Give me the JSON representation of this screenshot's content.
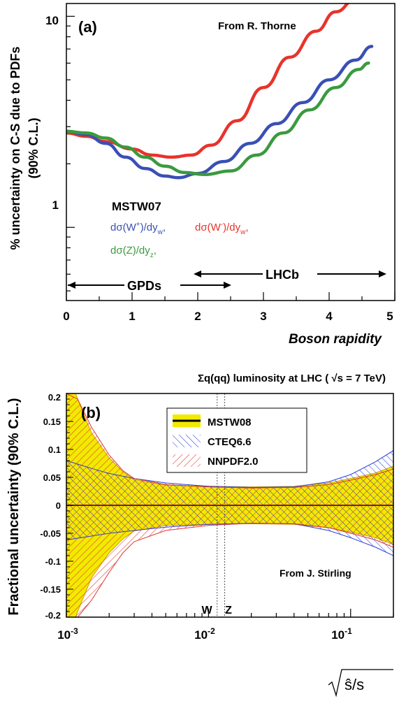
{
  "chart_data": [
    {
      "panel_label": "(a)",
      "type": "line",
      "credit": "From R. Thorne",
      "xlabel": "Boson rapidity",
      "ylabel_line1": "% uncertainty on C-S due to PDFs",
      "ylabel_line2": "(90% C.L.)",
      "xlim": [
        0,
        5
      ],
      "ylim": [
        0.45,
        11.5
      ],
      "yscale": "log",
      "x_ticks": [
        "0",
        "1",
        "2",
        "3",
        "4",
        "5"
      ],
      "y_ticks": [
        "1",
        "10"
      ],
      "legend_title": "MSTW07",
      "legend_entries": [
        "dσ(W+)/dyw,",
        "dσ(W-)/dyw,",
        "dσ(Z)/dyZ,"
      ],
      "colors": {
        "wplus": "#3a4fb5",
        "wminus": "#e8332b",
        "z": "#3a9a3e"
      },
      "series": [
        {
          "name": "dσ(W-)/dyW",
          "color": "#e8332b",
          "x": [
            0,
            0.3,
            0.6,
            1.0,
            1.3,
            1.6,
            1.9,
            2.2,
            2.6,
            3.0,
            3.4,
            3.8,
            4.1,
            4.4
          ],
          "y": [
            2.8,
            2.7,
            2.55,
            2.35,
            2.2,
            2.15,
            2.2,
            2.45,
            3.2,
            4.6,
            6.4,
            8.5,
            10.5,
            12.0
          ]
        },
        {
          "name": "dσ(W+)/dyW",
          "color": "#3a4fb5",
          "x": [
            0,
            0.3,
            0.6,
            0.9,
            1.2,
            1.5,
            1.7,
            2.0,
            2.4,
            2.8,
            3.2,
            3.6,
            4.0,
            4.4,
            4.65
          ],
          "y": [
            2.85,
            2.75,
            2.5,
            2.15,
            1.9,
            1.75,
            1.72,
            1.8,
            2.05,
            2.5,
            3.1,
            3.9,
            5.0,
            6.2,
            7.2
          ]
        },
        {
          "name": "dσ(Z)/dyZ",
          "color": "#3a9a3e",
          "x": [
            0,
            0.3,
            0.6,
            0.9,
            1.2,
            1.5,
            1.8,
            2.1,
            2.5,
            2.9,
            3.3,
            3.7,
            4.1,
            4.45,
            4.6
          ],
          "y": [
            2.85,
            2.8,
            2.65,
            2.4,
            2.15,
            1.95,
            1.82,
            1.78,
            1.85,
            2.2,
            2.8,
            3.6,
            4.6,
            5.6,
            6.0
          ]
        }
      ],
      "annotations": {
        "gpds": {
          "text": "GPDs",
          "x_from": 0,
          "x_to": 2.5
        },
        "lhcb": {
          "text": "LHCb",
          "x_from": 2.0,
          "x_to": 5.0
        }
      }
    },
    {
      "panel_label": "(b)",
      "type": "area",
      "title": "Σq(qq) luminosity at LHC ( √s = 7 TeV)",
      "ylabel": "Fractional uncertainty (90% C.L.)",
      "xlabel": "√(ŝ/s)",
      "credit": "From J. Stirling",
      "xscale": "log",
      "xlim": [
        0.001,
        0.2
      ],
      "ylim": [
        -0.2,
        0.2
      ],
      "x_ticks": [
        {
          "base": "10",
          "exp": "-3"
        },
        {
          "base": "10",
          "exp": "-2"
        },
        {
          "base": "10",
          "exp": "-1"
        }
      ],
      "y_ticks": [
        "0.2",
        "0.15",
        "0.1",
        "0.05",
        "0",
        "-0.05",
        "-0.1",
        "-0.15",
        "-0.2"
      ],
      "vlines": [
        {
          "label": "W",
          "x": 0.0115
        },
        {
          "label": "Z",
          "x": 0.013
        }
      ],
      "legend": [
        "MSTW08",
        "CTEQ6.6",
        "NNPDF2.0"
      ],
      "colors": {
        "mstw": "#f2ea00",
        "cteq": "#2b3fd6",
        "nnpdf": "#e0352f"
      },
      "series": [
        {
          "name": "MSTW08",
          "color": "#f2ea00",
          "x": [
            0.001,
            0.0012,
            0.0015,
            0.002,
            0.0025,
            0.003,
            0.005,
            0.01,
            0.02,
            0.04,
            0.07,
            0.1,
            0.15,
            0.2
          ],
          "upper": [
            0.25,
            0.19,
            0.13,
            0.085,
            0.06,
            0.046,
            0.036,
            0.034,
            0.033,
            0.034,
            0.04,
            0.048,
            0.058,
            0.07
          ],
          "lower": [
            -0.25,
            -0.19,
            -0.13,
            -0.085,
            -0.06,
            -0.046,
            -0.036,
            -0.034,
            -0.033,
            -0.034,
            -0.04,
            -0.048,
            -0.058,
            -0.07
          ]
        },
        {
          "name": "CTEQ6.6",
          "color": "#2b3fd6",
          "x": [
            0.001,
            0.0015,
            0.002,
            0.003,
            0.005,
            0.01,
            0.02,
            0.04,
            0.07,
            0.1,
            0.15,
            0.2
          ],
          "upper": [
            0.08,
            0.066,
            0.057,
            0.048,
            0.04,
            0.034,
            0.032,
            0.033,
            0.042,
            0.055,
            0.078,
            0.098
          ],
          "lower": [
            -0.062,
            -0.055,
            -0.05,
            -0.045,
            -0.039,
            -0.034,
            -0.032,
            -0.033,
            -0.045,
            -0.058,
            -0.075,
            -0.09
          ]
        },
        {
          "name": "NNPDF2.0",
          "color": "#e0352f",
          "x": [
            0.001,
            0.0012,
            0.0015,
            0.002,
            0.0025,
            0.003,
            0.005,
            0.01,
            0.02,
            0.04,
            0.07,
            0.1,
            0.15,
            0.2
          ],
          "upper": [
            0.2,
            0.19,
            0.14,
            0.09,
            0.062,
            0.048,
            0.037,
            0.033,
            0.031,
            0.032,
            0.037,
            0.045,
            0.055,
            0.065
          ],
          "lower": [
            -0.2,
            -0.2,
            -0.17,
            -0.12,
            -0.085,
            -0.065,
            -0.045,
            -0.036,
            -0.032,
            -0.033,
            -0.04,
            -0.05,
            -0.062,
            -0.075
          ]
        }
      ]
    }
  ]
}
